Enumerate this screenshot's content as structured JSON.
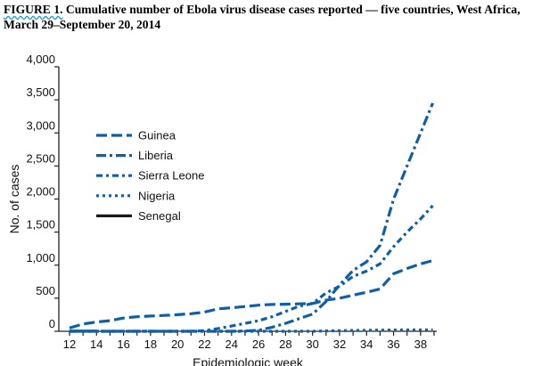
{
  "figure": {
    "label": "FIGURE 1.",
    "title": "Cumulative number of Ebola virus disease cases reported — five countries, West Africa, March 29–September 20, 2014"
  },
  "chart_data": {
    "type": "line",
    "xlabel": "Epidemiologic week",
    "ylabel": "No. of cases",
    "xlim": [
      12,
      39
    ],
    "ylim": [
      0,
      4000
    ],
    "x_ticks": [
      12,
      14,
      16,
      18,
      20,
      22,
      24,
      26,
      28,
      30,
      32,
      34,
      36,
      38
    ],
    "y_ticks": [
      0,
      500,
      1000,
      1500,
      2000,
      2500,
      3000,
      3500,
      4000
    ],
    "y_tick_labels": [
      "0",
      "500",
      "1,000",
      "1,500",
      "2,000",
      "2,500",
      "3,000",
      "3,500",
      "4,000"
    ],
    "grid": false,
    "legend_position": "upper-left",
    "series": [
      {
        "name": "Guinea",
        "color": "#0e5fa8",
        "dash": "dash",
        "x": [
          12,
          13,
          14,
          15,
          16,
          17,
          18,
          19,
          20,
          21,
          22,
          23,
          24,
          25,
          26,
          27,
          28,
          29,
          30,
          31,
          32,
          33,
          34,
          35,
          36,
          37,
          38,
          38.9
        ],
        "y": [
          50,
          110,
          140,
          160,
          200,
          220,
          230,
          240,
          250,
          265,
          290,
          340,
          355,
          375,
          395,
          405,
          410,
          415,
          420,
          470,
          500,
          545,
          590,
          640,
          870,
          950,
          1020,
          1070
        ]
      },
      {
        "name": "Liberia",
        "color": "#0e5fa8",
        "dash": "dashdot",
        "x": [
          12,
          13,
          14,
          15,
          16,
          17,
          18,
          19,
          20,
          21,
          22,
          23,
          24,
          25,
          26,
          27,
          28,
          29,
          30,
          31,
          32,
          33,
          34,
          35,
          36,
          37,
          38,
          38.9
        ],
        "y": [
          0,
          0,
          0,
          0,
          0,
          0,
          0,
          0,
          0,
          0,
          0,
          0,
          0,
          5,
          15,
          60,
          120,
          190,
          260,
          450,
          700,
          920,
          1050,
          1300,
          2000,
          2500,
          3000,
          3450
        ]
      },
      {
        "name": "Sierra Leone",
        "color": "#0e5fa8",
        "dash": "dashdot2",
        "x": [
          12,
          13,
          14,
          15,
          16,
          17,
          18,
          19,
          20,
          21,
          22,
          23,
          24,
          25,
          26,
          27,
          28,
          29,
          30,
          31,
          32,
          33,
          34,
          35,
          36,
          37,
          38,
          38.9
        ],
        "y": [
          0,
          0,
          0,
          0,
          0,
          0,
          0,
          0,
          0,
          0,
          10,
          40,
          80,
          120,
          160,
          220,
          300,
          380,
          420,
          580,
          680,
          830,
          910,
          1020,
          1280,
          1500,
          1700,
          1900
        ]
      },
      {
        "name": "Nigeria",
        "color": "#0e5fa8",
        "dash": "dot",
        "x": [
          12,
          30,
          31,
          32,
          33,
          34,
          35,
          36,
          37,
          38.9
        ],
        "y": [
          0,
          0,
          5,
          10,
          12,
          15,
          17,
          19,
          20,
          21
        ]
      },
      {
        "name": "Senegal",
        "color": "#1a1a1a",
        "dash": "solid",
        "x": [
          12,
          14
        ],
        "y": [
          1,
          1
        ]
      }
    ]
  }
}
